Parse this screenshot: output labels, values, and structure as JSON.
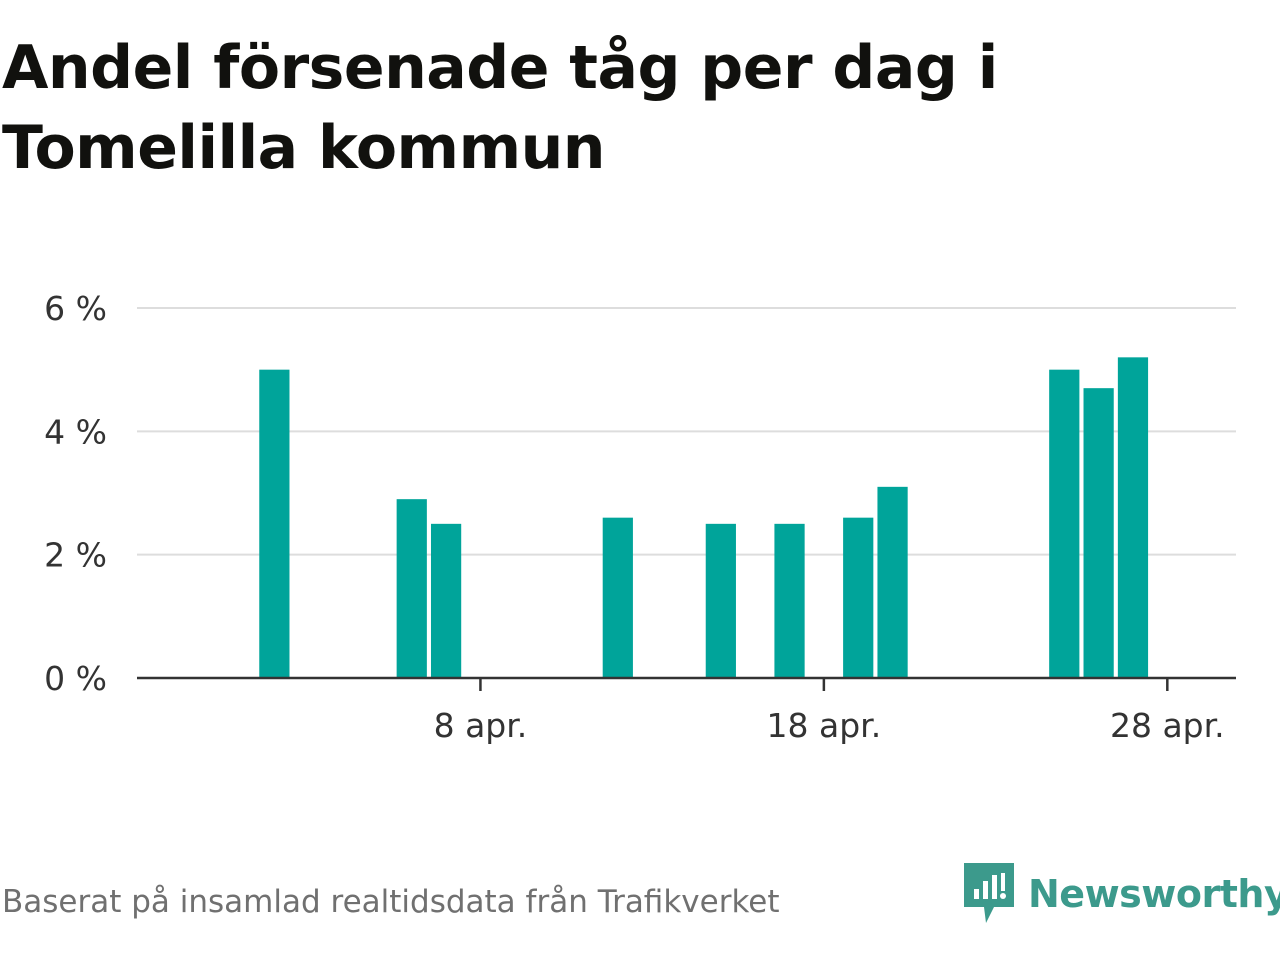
{
  "title": "Andel försenade tåg per dag i Tomelilla kommun",
  "footer": "Baserat på insamlad realtidsdata från Trafikverket",
  "brand": {
    "name": "Newsworthy",
    "icon": "newsworthy-logo-icon",
    "color": "#3c9a8c"
  },
  "colors": {
    "bar": "#00a49a",
    "grid": "#dddddd",
    "axis": "#333333"
  },
  "chart_data": {
    "type": "bar",
    "x": [
      "2 apr.",
      "6 apr.",
      "7 apr.",
      "12 apr.",
      "15 apr.",
      "17 apr.",
      "19 apr.",
      "20 apr.",
      "25 apr.",
      "26 apr.",
      "27 apr."
    ],
    "values": [
      5.0,
      2.9,
      2.5,
      2.6,
      2.5,
      2.5,
      2.6,
      3.1,
      5.0,
      4.7,
      5.2
    ],
    "x_range": [
      "29 mar.",
      "30 apr."
    ],
    "x_ticks": [
      "8 apr.",
      "18 apr.",
      "28 apr."
    ],
    "y_ticks": [
      "0 %",
      "2 %",
      "4 %",
      "6 %"
    ],
    "ylim": [
      0,
      6
    ],
    "unit": "%",
    "grid": true,
    "legend": "none"
  }
}
